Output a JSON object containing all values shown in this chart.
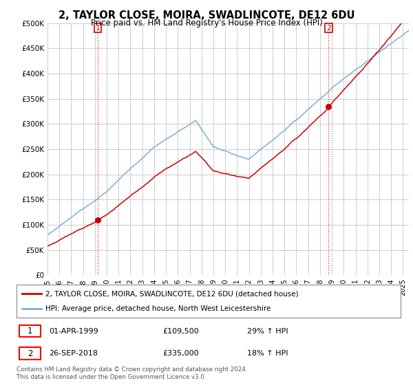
{
  "title": "2, TAYLOR CLOSE, MOIRA, SWADLINCOTE, DE12 6DU",
  "subtitle": "Price paid vs. HM Land Registry's House Price Index (HPI)",
  "legend_line1": "2, TAYLOR CLOSE, MOIRA, SWADLINCOTE, DE12 6DU (detached house)",
  "legend_line2": "HPI: Average price, detached house, North West Leicestershire",
  "annotation1_label": "1",
  "annotation1_date": "01-APR-1999",
  "annotation1_price": "£109,500",
  "annotation1_hpi": "29% ↑ HPI",
  "annotation2_label": "2",
  "annotation2_date": "26-SEP-2018",
  "annotation2_price": "£335,000",
  "annotation2_hpi": "18% ↑ HPI",
  "footer": "Contains HM Land Registry data © Crown copyright and database right 2024.\nThis data is licensed under the Open Government Licence v3.0.",
  "sale1_date_num": 1999.25,
  "sale1_price": 109500,
  "sale2_date_num": 2018.73,
  "sale2_price": 335000,
  "hpi_color": "#7bafd4",
  "price_color": "#cc0000",
  "background_color": "#ffffff",
  "grid_color": "#cccccc",
  "ylim_min": 0,
  "ylim_max": 500000,
  "xlim_min": 1995.0,
  "xlim_max": 2025.5
}
